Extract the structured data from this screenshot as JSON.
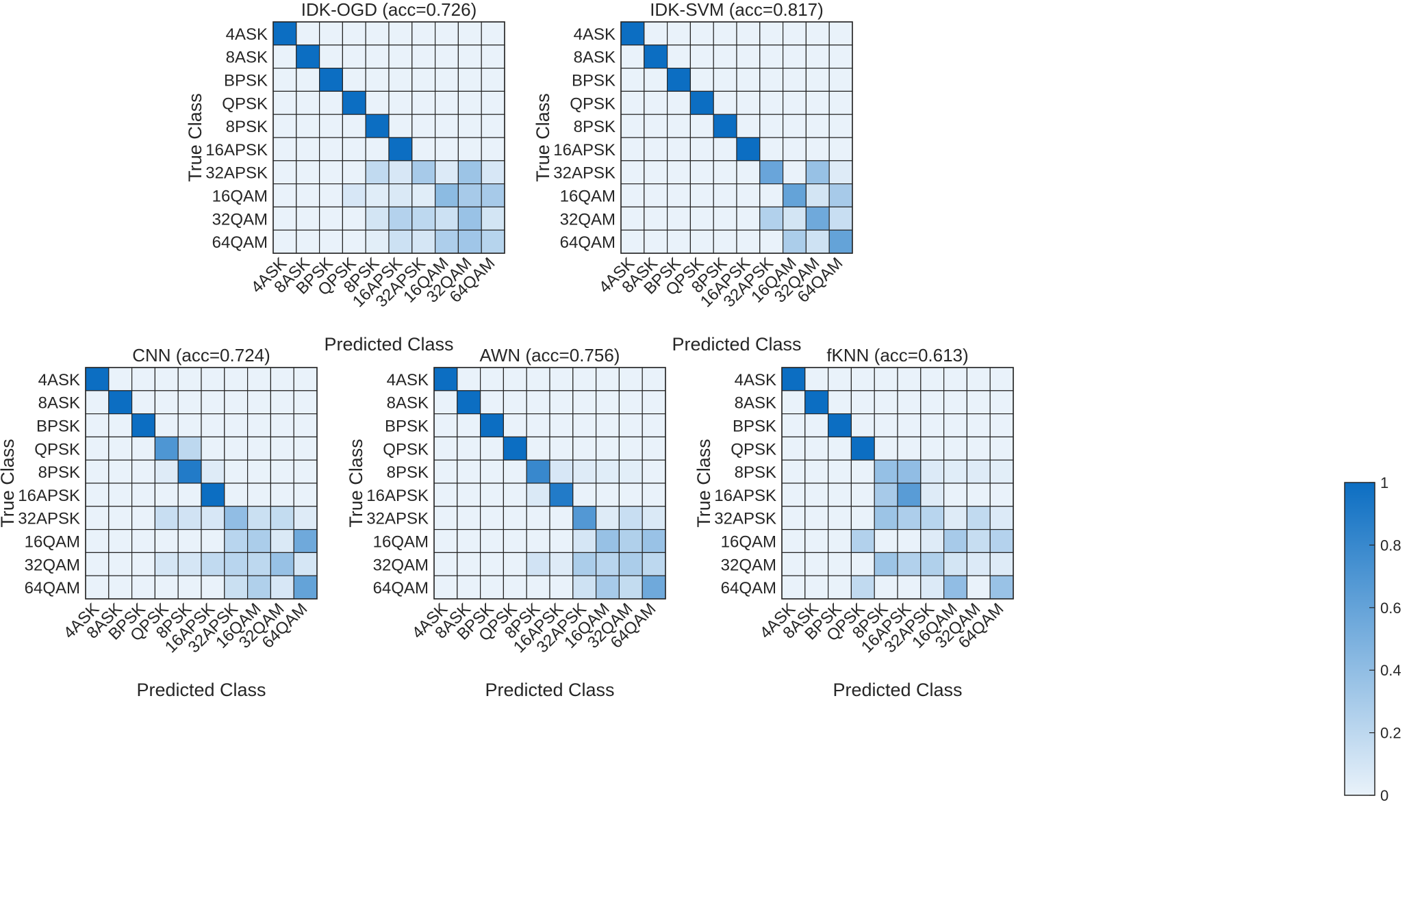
{
  "figure": {
    "colorbar": {
      "ticks": [
        "0",
        "0.2",
        "0.4",
        "0.6",
        "0.8",
        "1"
      ],
      "color_low": "#e9f2fa",
      "color_high": "#0c6ec2",
      "range": [
        0,
        1
      ]
    }
  },
  "chart_data": [
    {
      "type": "heatmap",
      "title": "IDK-OGD (acc=0.726)",
      "xlabel": "Predicted Class",
      "ylabel": "True Class",
      "categories": [
        "4ASK",
        "8ASK",
        "BPSK",
        "QPSK",
        "8PSK",
        "16APSK",
        "32APSK",
        "16QAM",
        "32QAM",
        "64QAM"
      ],
      "matrix": [
        [
          1,
          0,
          0,
          0,
          0,
          0,
          0,
          0,
          0,
          0
        ],
        [
          0,
          1,
          0,
          0,
          0,
          0,
          0,
          0,
          0,
          0
        ],
        [
          0,
          0,
          1,
          0,
          0,
          0,
          0,
          0,
          0,
          0
        ],
        [
          0,
          0,
          0,
          1,
          0,
          0,
          0,
          0,
          0,
          0
        ],
        [
          0,
          0,
          0,
          0,
          1,
          0,
          0,
          0,
          0,
          0
        ],
        [
          0,
          0,
          0,
          0,
          0,
          1,
          0,
          0,
          0,
          0
        ],
        [
          0,
          0,
          0,
          0,
          0.18,
          0.08,
          0.3,
          0.06,
          0.35,
          0.08
        ],
        [
          0,
          0,
          0,
          0.08,
          0.04,
          0.07,
          0.04,
          0.42,
          0.3,
          0.3
        ],
        [
          0,
          0,
          0,
          0,
          0.1,
          0.24,
          0.2,
          0.13,
          0.36,
          0.1
        ],
        [
          0,
          0,
          0,
          0,
          0.03,
          0.13,
          0.09,
          0.27,
          0.33,
          0.23
        ]
      ]
    },
    {
      "type": "heatmap",
      "title": "IDK-SVM (acc=0.817)",
      "xlabel": "Predicted Class",
      "ylabel": "True Class",
      "categories": [
        "4ASK",
        "8ASK",
        "BPSK",
        "QPSK",
        "8PSK",
        "16APSK",
        "32APSK",
        "16QAM",
        "32QAM",
        "64QAM"
      ],
      "matrix": [
        [
          1,
          0,
          0,
          0,
          0,
          0,
          0,
          0,
          0,
          0
        ],
        [
          0,
          1,
          0,
          0,
          0,
          0,
          0,
          0,
          0,
          0
        ],
        [
          0,
          0,
          1,
          0,
          0,
          0,
          0,
          0,
          0,
          0
        ],
        [
          0,
          0,
          0,
          1,
          0,
          0,
          0,
          0,
          0,
          0
        ],
        [
          0,
          0,
          0,
          0,
          1,
          0,
          0,
          0,
          0,
          0
        ],
        [
          0,
          0,
          0,
          0,
          0,
          1,
          0,
          0,
          0,
          0
        ],
        [
          0,
          0,
          0,
          0,
          0,
          0,
          0.58,
          0,
          0.37,
          0.05
        ],
        [
          0,
          0,
          0,
          0,
          0,
          0,
          0,
          0.6,
          0.1,
          0.3
        ],
        [
          0,
          0,
          0,
          0,
          0,
          0,
          0.25,
          0.1,
          0.55,
          0.15
        ],
        [
          0,
          0,
          0,
          0,
          0,
          0,
          0,
          0.28,
          0.12,
          0.6
        ]
      ]
    },
    {
      "type": "heatmap",
      "title": "CNN (acc=0.724)",
      "xlabel": "Predicted Class",
      "ylabel": "True Class",
      "categories": [
        "4ASK",
        "8ASK",
        "BPSK",
        "QPSK",
        "8PSK",
        "16APSK",
        "32APSK",
        "16QAM",
        "32QAM",
        "64QAM"
      ],
      "matrix": [
        [
          1,
          0,
          0,
          0,
          0,
          0,
          0,
          0,
          0,
          0
        ],
        [
          0,
          1,
          0,
          0,
          0,
          0,
          0,
          0,
          0,
          0
        ],
        [
          0,
          0,
          1,
          0,
          0,
          0,
          0,
          0,
          0,
          0
        ],
        [
          0,
          0,
          0,
          0.7,
          0.2,
          0,
          0,
          0,
          0,
          0
        ],
        [
          0,
          0,
          0,
          0.05,
          0.9,
          0.05,
          0,
          0,
          0,
          0
        ],
        [
          0,
          0,
          0,
          0,
          0,
          1,
          0,
          0,
          0,
          0
        ],
        [
          0,
          0,
          0,
          0.15,
          0.11,
          0.08,
          0.4,
          0.14,
          0.17,
          0.05
        ],
        [
          0,
          0,
          0,
          0,
          0,
          0,
          0.22,
          0.28,
          0.07,
          0.55
        ],
        [
          0,
          0,
          0,
          0.09,
          0.09,
          0.18,
          0.22,
          0.2,
          0.37,
          0.09
        ],
        [
          0,
          0,
          0,
          0,
          0,
          0,
          0.14,
          0.26,
          0.08,
          0.6
        ]
      ]
    },
    {
      "type": "heatmap",
      "title": "AWN (acc=0.756)",
      "xlabel": "Predicted Class",
      "ylabel": "True Class",
      "categories": [
        "4ASK",
        "8ASK",
        "BPSK",
        "QPSK",
        "8PSK",
        "16APSK",
        "32APSK",
        "16QAM",
        "32QAM",
        "64QAM"
      ],
      "matrix": [
        [
          1,
          0,
          0,
          0,
          0,
          0,
          0,
          0,
          0,
          0
        ],
        [
          0,
          1,
          0,
          0,
          0,
          0,
          0,
          0,
          0,
          0
        ],
        [
          0,
          0,
          1,
          0,
          0,
          0,
          0,
          0,
          0,
          0
        ],
        [
          0,
          0,
          0,
          1,
          0,
          0,
          0,
          0,
          0,
          0
        ],
        [
          0,
          0,
          0,
          0,
          0.8,
          0.08,
          0.05,
          0.04,
          0.03,
          0
        ],
        [
          0,
          0,
          0,
          0,
          0.07,
          0.9,
          0,
          0,
          0,
          0
        ],
        [
          0,
          0,
          0,
          0,
          0,
          0,
          0.68,
          0.05,
          0.15,
          0.07
        ],
        [
          0,
          0,
          0,
          0,
          0,
          0,
          0.09,
          0.37,
          0.26,
          0.36
        ],
        [
          0,
          0,
          0,
          0,
          0.11,
          0.05,
          0.28,
          0.22,
          0.28,
          0.2
        ],
        [
          0,
          0,
          0,
          0,
          0,
          0,
          0.12,
          0.3,
          0.17,
          0.55
        ]
      ]
    },
    {
      "type": "heatmap",
      "title": "fKNN (acc=0.613)",
      "xlabel": "Predicted Class",
      "ylabel": "True Class",
      "categories": [
        "4ASK",
        "8ASK",
        "BPSK",
        "QPSK",
        "8PSK",
        "16APSK",
        "32APSK",
        "16QAM",
        "32QAM",
        "64QAM"
      ],
      "matrix": [
        [
          1,
          0,
          0,
          0,
          0,
          0,
          0,
          0,
          0,
          0
        ],
        [
          0,
          1,
          0,
          0,
          0,
          0,
          0,
          0,
          0,
          0
        ],
        [
          0,
          0,
          1,
          0,
          0,
          0,
          0,
          0,
          0,
          0
        ],
        [
          0,
          0,
          0,
          1,
          0,
          0,
          0,
          0,
          0,
          0
        ],
        [
          0,
          0,
          0,
          0,
          0.38,
          0.4,
          0.06,
          0.04,
          0.05,
          0.03
        ],
        [
          0,
          0,
          0,
          0,
          0.3,
          0.65,
          0.05,
          0,
          0,
          0
        ],
        [
          0,
          0,
          0,
          0,
          0.35,
          0.27,
          0.22,
          0.05,
          0.18,
          0.06
        ],
        [
          0,
          0,
          0,
          0.25,
          0,
          0,
          0.05,
          0.3,
          0.16,
          0.24
        ],
        [
          0,
          0,
          0,
          0,
          0.35,
          0.25,
          0.26,
          0.1,
          0.06,
          0.05
        ],
        [
          0,
          0,
          0,
          0.18,
          0,
          0,
          0.06,
          0.4,
          0,
          0.36
        ]
      ]
    }
  ]
}
